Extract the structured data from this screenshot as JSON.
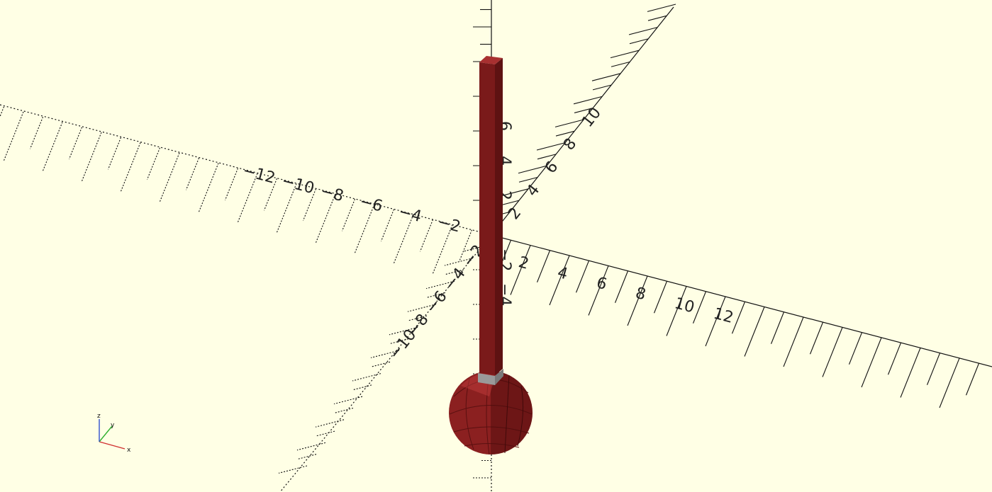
{
  "viewport": {
    "background": "#ffffe5",
    "model_color": "#8b2020",
    "highlight_color": "#9a9a9a"
  },
  "axes": {
    "x_pos_labels": [
      "2",
      "4",
      "6",
      "8",
      "10",
      "12"
    ],
    "x_neg_labels": [
      "2",
      "4",
      "6",
      "8",
      "10",
      "12"
    ],
    "y_pos_labels": [
      "2",
      "4",
      "6",
      "8",
      "10"
    ],
    "y_neg_labels": [
      "2",
      "4",
      "6",
      "8",
      "10"
    ],
    "z_pos_labels": [
      "2",
      "4",
      "6"
    ],
    "z_neg_labels": [
      "2",
      "4"
    ]
  },
  "gizmo": {
    "x_label": "x",
    "y_label": "y",
    "z_label": "z",
    "x_color": "#d03030",
    "y_color": "#30b030",
    "z_color": "#3050d0"
  }
}
